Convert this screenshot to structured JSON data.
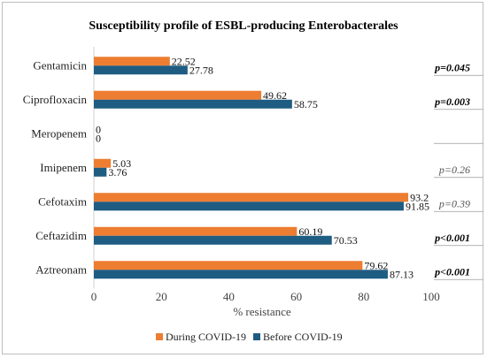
{
  "chart_data": {
    "type": "bar",
    "orientation": "horizontal",
    "title": "Susceptibility profile of ESBL-producing Enterobacterales",
    "xlabel": "% resistance",
    "ylabel": "",
    "xlim": [
      0,
      100
    ],
    "xticks": [
      0,
      20,
      40,
      60,
      80,
      100
    ],
    "grid": false,
    "legend_position": "bottom",
    "categories": [
      "Gentamicin",
      "Ciprofloxacin",
      "Meropenem",
      "Imipenem",
      "Cefotaxim",
      "Ceftazidim",
      "Aztreonam"
    ],
    "series": [
      {
        "name": "During COVID-19",
        "color": "#ED7D31",
        "values": [
          22.52,
          49.62,
          0,
          5.03,
          93.2,
          60.19,
          79.62
        ]
      },
      {
        "name": "Before COVID-19",
        "color": "#1F5C82",
        "values": [
          27.78,
          58.75,
          0,
          3.76,
          91.85,
          70.53,
          87.13
        ]
      }
    ],
    "annotations": [
      {
        "category": "Gentamicin",
        "text": "p=0.045",
        "bold": true
      },
      {
        "category": "Ciprofloxacin",
        "text": "p=0.003",
        "bold": true
      },
      {
        "category": "Meropenem",
        "text": "",
        "bold": false
      },
      {
        "category": "Imipenem",
        "text": "p=0.26",
        "bold": false
      },
      {
        "category": "Cefotaxim",
        "text": "p=0.39",
        "bold": false
      },
      {
        "category": "Ceftazidim",
        "text": "p<0.001",
        "bold": true
      },
      {
        "category": "Aztreonam",
        "text": "p<0.001",
        "bold": true
      }
    ]
  }
}
